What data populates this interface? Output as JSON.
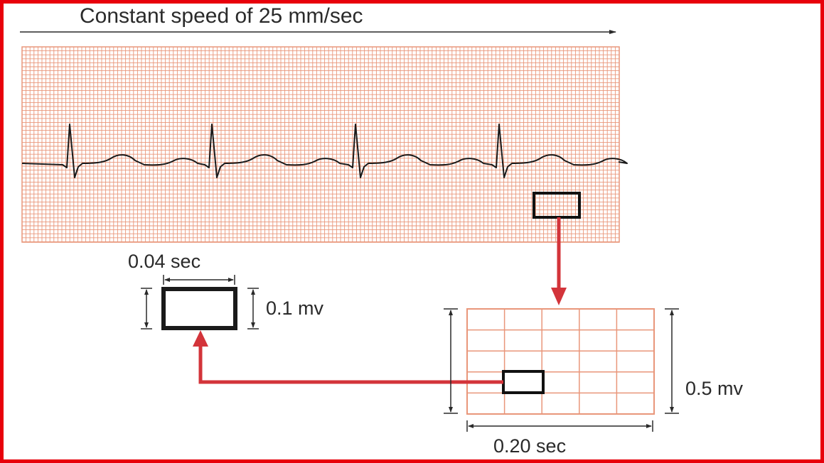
{
  "title": "Constant speed of 25 mm/sec",
  "small_box": {
    "time_label": "0.04 sec",
    "voltage_label": "0.1 mv"
  },
  "large_box": {
    "time_label": "0.20 sec",
    "voltage_label": "0.5 mv",
    "columns": 5,
    "rows": 5
  },
  "colors": {
    "frame": "#e8000b",
    "grid": "#e9967a",
    "arrow": "#d3343a",
    "trace": "#1a1a1a"
  }
}
